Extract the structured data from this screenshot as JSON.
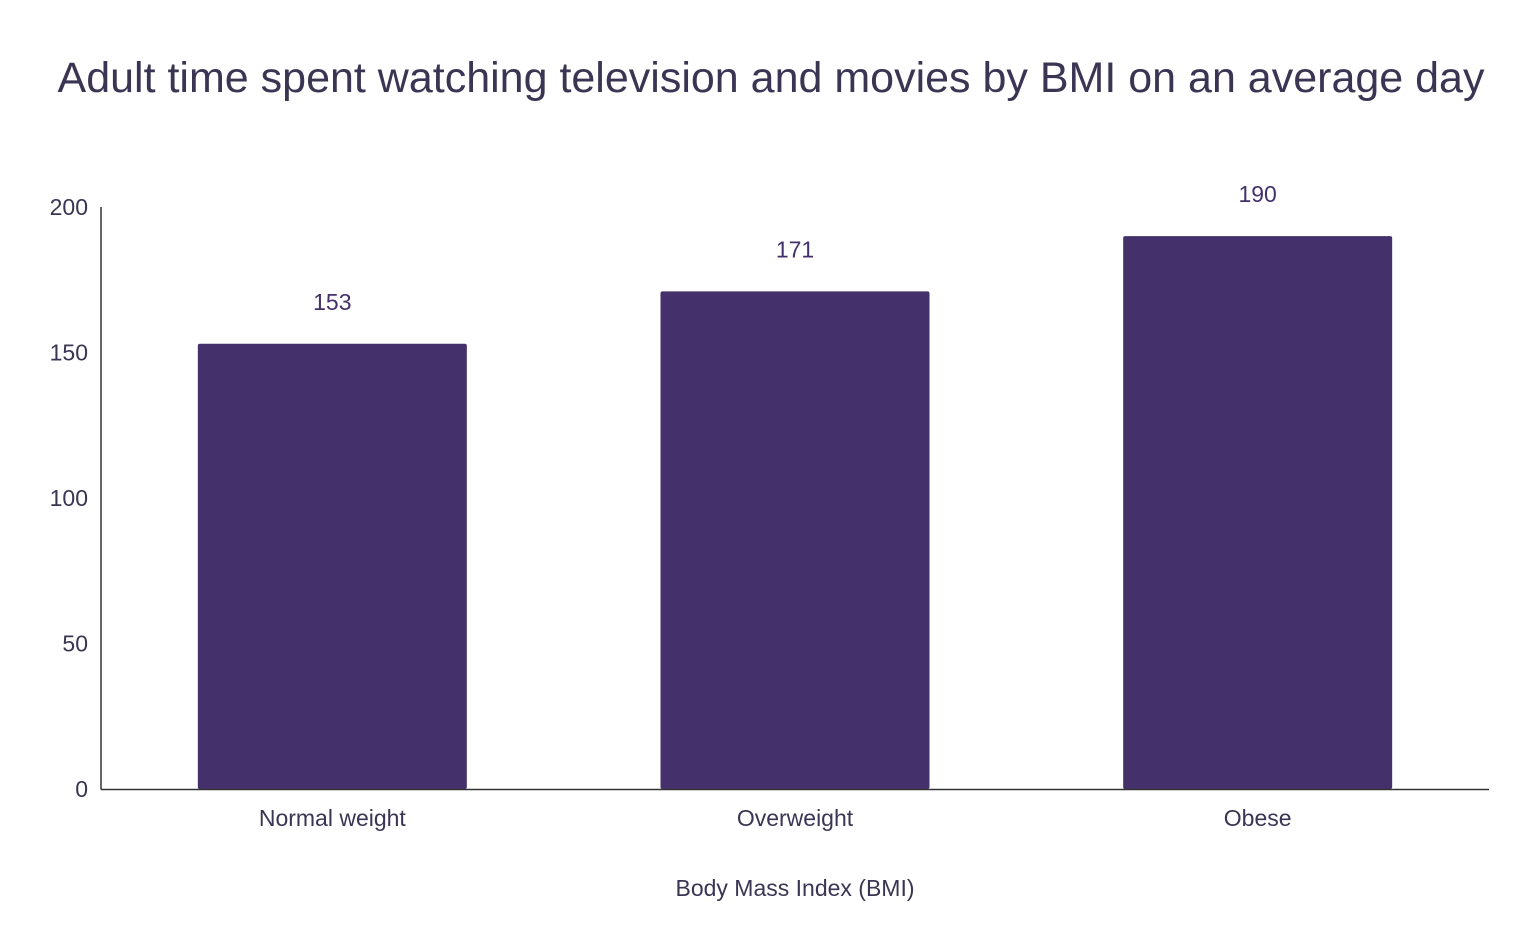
{
  "chart_data": {
    "type": "bar",
    "title": "Adult time spent watching television and movies by BMI on an average day",
    "xlabel": "Body Mass Index (BMI)",
    "ylabel": "",
    "categories": [
      "Normal weight",
      "Overweight",
      "Obese"
    ],
    "values": [
      153,
      171,
      190
    ],
    "ylim": [
      0,
      200
    ],
    "yticks": [
      0,
      50,
      100,
      150,
      200
    ],
    "grid": false,
    "legend": "none",
    "data_labels": true,
    "colors": {
      "bar": "#44306a",
      "text": "#3b3553",
      "axis": "#333333"
    }
  }
}
